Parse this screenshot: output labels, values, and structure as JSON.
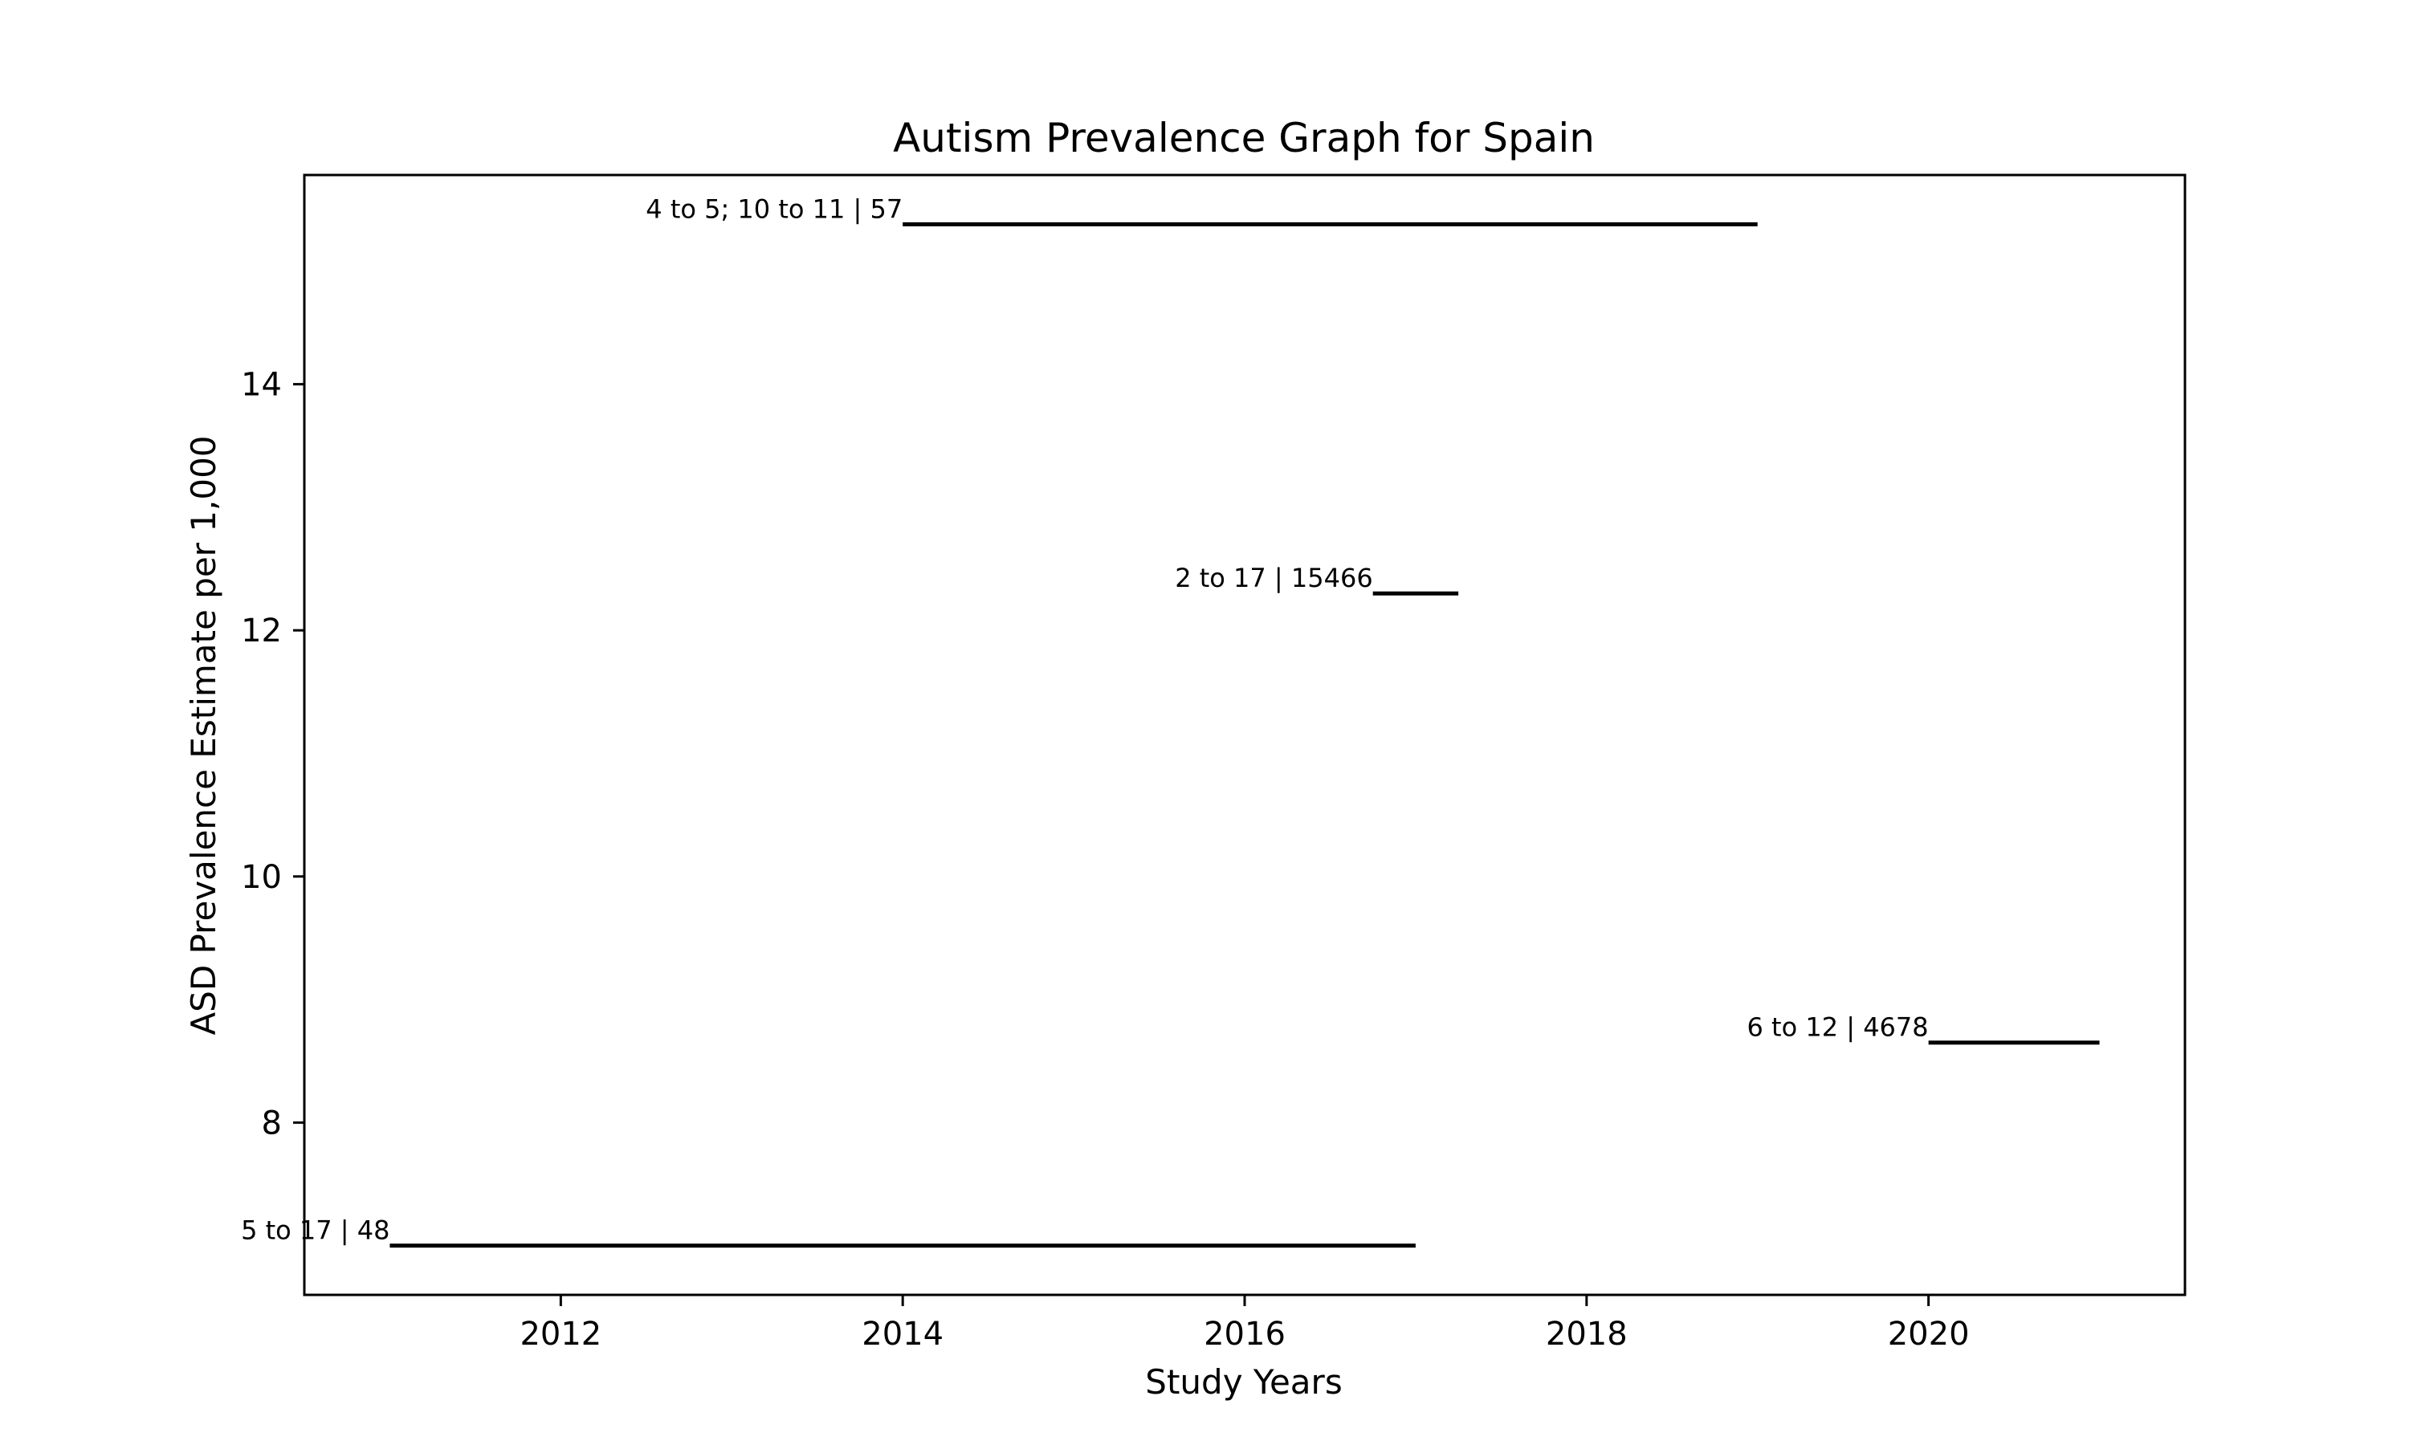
{
  "chart_data": {
    "type": "line",
    "title": "Autism Prevalence Graph for Spain",
    "xlabel": "Study Years",
    "ylabel": "ASD Prevalence Estimate per 1,000",
    "xlim": [
      2010.5,
      2021.5
    ],
    "ylim": [
      6.6,
      15.7
    ],
    "x_ticks": [
      2012,
      2014,
      2016,
      2018,
      2020
    ],
    "y_ticks": [
      8,
      10,
      12,
      14
    ],
    "grid": false,
    "series": [
      {
        "label": "4 to 5; 10 to 11 | 57",
        "x_start": 2014,
        "x_end": 2019,
        "y": 15.3
      },
      {
        "label": "2 to 17 | 15466",
        "x_start": 2016.75,
        "x_end": 2017.25,
        "y": 12.3
      },
      {
        "label": "6 to 12 | 4678",
        "x_start": 2020,
        "x_end": 2021,
        "y": 8.65
      },
      {
        "label": "5 to 17 | 48",
        "x_start": 2011,
        "x_end": 2017,
        "y": 7.0
      }
    ],
    "colors": {
      "line": "#000000",
      "frame": "#000000",
      "background": "#ffffff"
    }
  }
}
